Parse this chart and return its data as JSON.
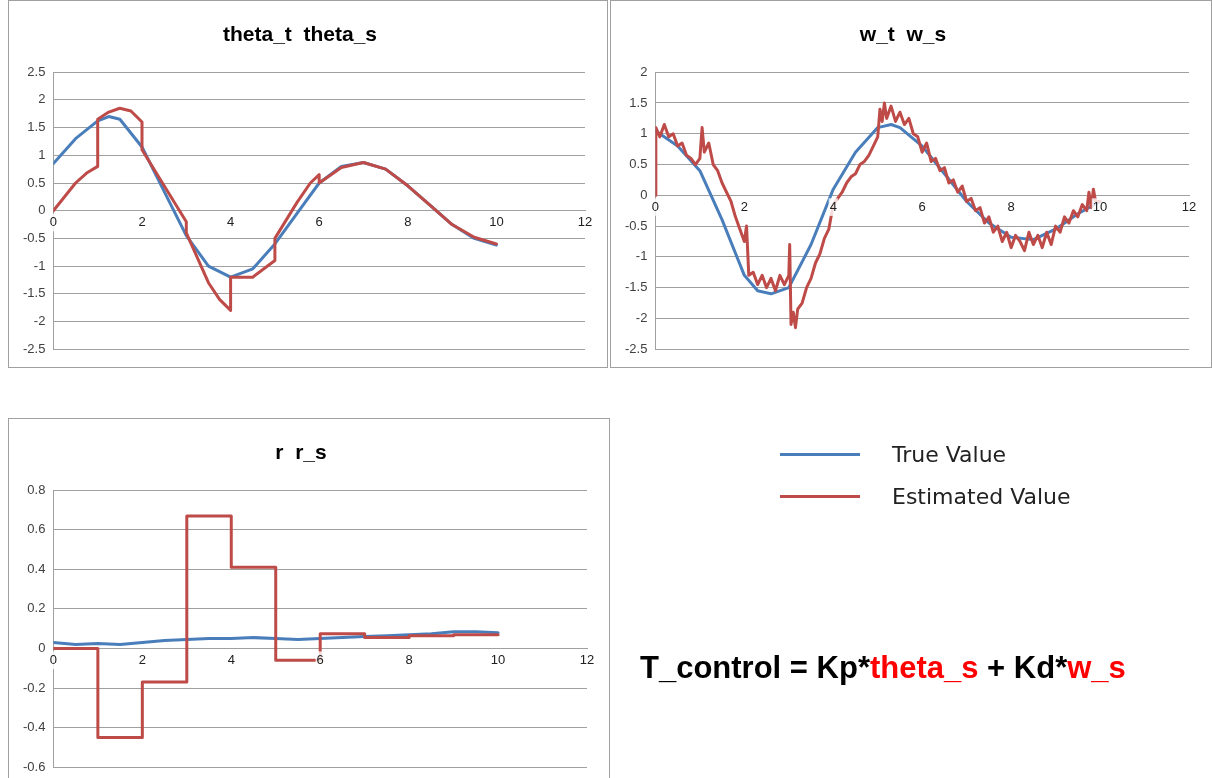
{
  "chart_data": [
    {
      "type": "line",
      "title": "theta_t  theta_s",
      "xlim": [
        0,
        12
      ],
      "xticks": [
        0,
        2,
        4,
        6,
        8,
        10,
        12
      ],
      "ylim": [
        -2.5,
        2.5
      ],
      "yticks": [
        -2.5,
        -2,
        -1.5,
        -1,
        -0.5,
        0,
        0.5,
        1,
        1.5,
        2,
        2.5
      ],
      "grid": "y",
      "marker": "none",
      "line_style": "solid",
      "series": [
        {
          "color": "#4a7ebb",
          "x": [
            0,
            0.5,
            1,
            1.25,
            1.5,
            2,
            2.5,
            3,
            3.5,
            4,
            4.5,
            5,
            5.5,
            6,
            6.5,
            7,
            7.5,
            8,
            8.5,
            9,
            9.5,
            10
          ],
          "values": [
            0.85,
            1.3,
            1.62,
            1.7,
            1.65,
            1.15,
            0.35,
            -0.45,
            -1.0,
            -1.2,
            -1.05,
            -0.6,
            -0.05,
            0.5,
            0.8,
            0.87,
            0.75,
            0.45,
            0.1,
            -0.25,
            -0.5,
            -0.62
          ]
        },
        {
          "color": "#be4b48",
          "x": [
            0,
            0.5,
            0.75,
            1,
            1,
            1.25,
            1.5,
            1.75,
            2,
            2,
            2.5,
            3,
            3,
            3.5,
            3.75,
            4,
            4,
            4.5,
            5,
            5,
            5.5,
            5.8,
            6,
            6,
            6.5,
            7,
            7.5,
            8,
            8.5,
            9,
            9.5,
            10
          ],
          "values": [
            0,
            0.5,
            0.68,
            0.8,
            1.65,
            1.78,
            1.85,
            1.8,
            1.6,
            1.1,
            0.45,
            -0.2,
            -0.4,
            -1.3,
            -1.6,
            -1.8,
            -1.2,
            -1.2,
            -0.9,
            -0.5,
            0.15,
            0.5,
            0.65,
            0.5,
            0.78,
            0.87,
            0.75,
            0.45,
            0.1,
            -0.25,
            -0.48,
            -0.6
          ]
        }
      ]
    },
    {
      "type": "line",
      "title": "w_t  w_s",
      "xlim": [
        0,
        12
      ],
      "xticks": [
        0,
        2,
        4,
        6,
        8,
        10,
        12
      ],
      "ylim": [
        -2.5,
        2
      ],
      "yticks": [
        -2.5,
        -2,
        -1.5,
        -1,
        -0.5,
        0,
        0.5,
        1,
        1.5,
        2
      ],
      "grid": "y",
      "marker": "none",
      "line_style": "solid",
      "series": [
        {
          "color": "#4a7ebb",
          "x": [
            0,
            0.5,
            1,
            1.5,
            2,
            2.3,
            2.6,
            3,
            3.5,
            4,
            4.5,
            5,
            5.3,
            5.5,
            6,
            6.5,
            7,
            7.5,
            8,
            8.5,
            9,
            9.5,
            10
          ],
          "values": [
            1.05,
            0.8,
            0.4,
            -0.4,
            -1.3,
            -1.55,
            -1.6,
            -1.5,
            -0.8,
            0.1,
            0.7,
            1.1,
            1.15,
            1.1,
            0.8,
            0.35,
            -0.1,
            -0.45,
            -0.68,
            -0.72,
            -0.55,
            -0.3,
            -0.1
          ]
        },
        {
          "color": "#be4b48",
          "x": [
            0,
            0.01,
            0.1,
            0.2,
            0.3,
            0.4,
            0.5,
            0.6,
            0.7,
            0.8,
            0.9,
            1.0,
            1.05,
            1.1,
            1.2,
            1.3,
            1.4,
            1.5,
            1.6,
            1.7,
            1.8,
            1.9,
            2.0,
            2.05,
            2.1,
            2.2,
            2.3,
            2.4,
            2.5,
            2.6,
            2.7,
            2.8,
            2.9,
            3.0,
            3.02,
            3.05,
            3.1,
            3.15,
            3.2,
            3.3,
            3.4,
            3.5,
            3.6,
            3.7,
            3.8,
            3.9,
            4.0,
            4.1,
            4.2,
            4.3,
            4.4,
            4.5,
            4.6,
            4.7,
            4.8,
            4.9,
            5.0,
            5.05,
            5.1,
            5.15,
            5.2,
            5.3,
            5.4,
            5.5,
            5.6,
            5.7,
            5.8,
            5.9,
            6.0,
            6.1,
            6.2,
            6.3,
            6.4,
            6.5,
            6.6,
            6.7,
            6.8,
            6.9,
            7.0,
            7.1,
            7.2,
            7.3,
            7.4,
            7.5,
            7.6,
            7.7,
            7.8,
            7.9,
            8.0,
            8.1,
            8.2,
            8.3,
            8.4,
            8.5,
            8.6,
            8.7,
            8.8,
            8.9,
            9.0,
            9.1,
            9.2,
            9.3,
            9.4,
            9.5,
            9.6,
            9.7,
            9.75,
            9.8,
            9.85,
            9.9,
            10
          ],
          "values": [
            0,
            1.1,
            0.95,
            1.15,
            0.95,
            1.0,
            0.8,
            0.85,
            0.65,
            0.6,
            0.5,
            0.6,
            1.1,
            0.7,
            0.85,
            0.5,
            0.4,
            0.2,
            0.05,
            -0.1,
            -0.35,
            -0.55,
            -0.75,
            -0.5,
            -1.3,
            -1.25,
            -1.45,
            -1.3,
            -1.5,
            -1.35,
            -1.55,
            -1.3,
            -1.45,
            -1.3,
            -0.8,
            -2.1,
            -1.9,
            -2.15,
            -1.85,
            -1.75,
            -1.5,
            -1.35,
            -1.1,
            -0.95,
            -0.7,
            -0.55,
            -0.15,
            -0.05,
            0.05,
            0.2,
            0.3,
            0.35,
            0.5,
            0.55,
            0.65,
            0.8,
            0.95,
            1.4,
            1.2,
            1.5,
            1.25,
            1.45,
            1.2,
            1.35,
            1.15,
            1.25,
            1.0,
            0.95,
            0.7,
            0.85,
            0.55,
            0.6,
            0.4,
            0.45,
            0.2,
            0.25,
            0.05,
            0.15,
            -0.1,
            -0.05,
            -0.25,
            -0.2,
            -0.45,
            -0.35,
            -0.6,
            -0.5,
            -0.75,
            -0.6,
            -0.85,
            -0.65,
            -0.75,
            -0.9,
            -0.6,
            -0.8,
            -0.65,
            -0.85,
            -0.6,
            -0.8,
            -0.5,
            -0.6,
            -0.35,
            -0.45,
            -0.25,
            -0.35,
            -0.15,
            -0.25,
            0.05,
            -0.2,
            0.1,
            -0.1,
            -0.1
          ]
        }
      ]
    },
    {
      "type": "line",
      "title": "r  r_s",
      "xlim": [
        0,
        12
      ],
      "xticks": [
        0,
        2,
        4,
        6,
        8,
        10,
        12
      ],
      "ylim": [
        -0.6,
        0.8
      ],
      "yticks": [
        -0.6,
        -0.4,
        -0.2,
        0,
        0.2,
        0.4,
        0.6,
        0.8
      ],
      "grid": "y",
      "marker": "none",
      "line_style": "solid",
      "legend": "right",
      "series": [
        {
          "name": "True Value",
          "color": "#4a7ebb",
          "x": [
            0,
            0.5,
            1,
            1.5,
            2,
            2.5,
            3,
            3.5,
            4,
            4.5,
            5,
            5.5,
            6,
            6.5,
            7,
            7.5,
            8,
            8.5,
            9,
            9.5,
            10
          ],
          "values": [
            0.03,
            0.02,
            0.025,
            0.02,
            0.03,
            0.04,
            0.045,
            0.05,
            0.05,
            0.055,
            0.05,
            0.045,
            0.05,
            0.055,
            0.06,
            0.065,
            0.07,
            0.075,
            0.085,
            0.085,
            0.08
          ]
        },
        {
          "name": "Estimated Value",
          "type": "step",
          "color": "#be4b48",
          "x": [
            0,
            1,
            2,
            3,
            4,
            5,
            6,
            7,
            8,
            9,
            10
          ],
          "values": [
            0,
            -0.45,
            -0.17,
            0.67,
            0.41,
            -0.06,
            0.075,
            0.055,
            0.065,
            0.07,
            0.07
          ]
        }
      ]
    },
    {
      "type": "other",
      "annotations": [
        "T_control = Kp*",
        "theta_s",
        " + Kd*",
        "w_s"
      ],
      "colors": [
        "#000000",
        "#ff0000",
        "#000000",
        "#ff0000"
      ]
    }
  ]
}
